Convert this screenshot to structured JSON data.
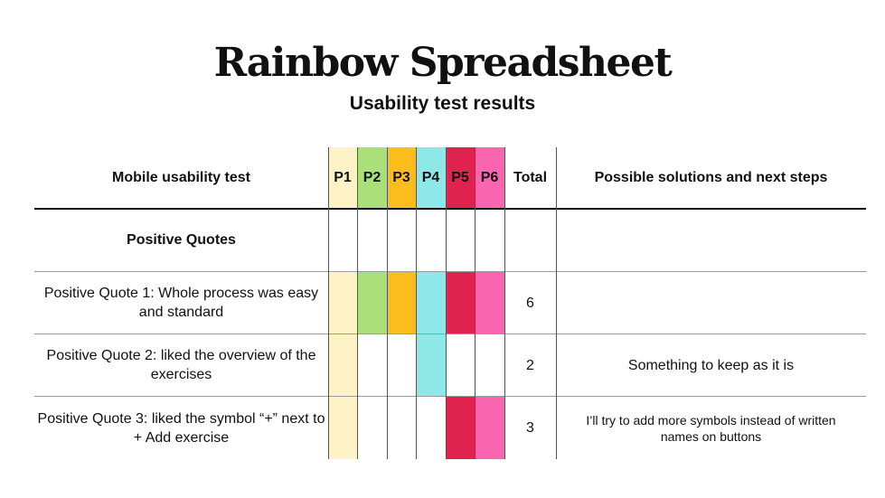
{
  "header": {
    "title": "Rainbow Spreadsheet",
    "subtitle": "Usability test results"
  },
  "table": {
    "columns": {
      "test": "Mobile usability test",
      "participants": [
        "P1",
        "P2",
        "P3",
        "P4",
        "P5",
        "P6"
      ],
      "total": "Total",
      "solutions": "Possible solutions and next steps"
    },
    "participant_colors": [
      "#fdf3c7",
      "#a9e07a",
      "#fbbd1c",
      "#8ee8e8",
      "#e0234e",
      "#fa65af"
    ],
    "rows": [
      {
        "label": "Positive Quotes",
        "section_heading": true,
        "marks": [
          false,
          false,
          false,
          false,
          false,
          false
        ],
        "total": "",
        "solution": ""
      },
      {
        "label": "Positive Quote 1: Whole process was easy and standard",
        "marks": [
          true,
          true,
          true,
          true,
          true,
          true
        ],
        "total": "6",
        "solution": ""
      },
      {
        "label": "Positive Quote 2: liked the overview of the exercises",
        "marks": [
          true,
          false,
          false,
          true,
          false,
          false
        ],
        "total": "2",
        "solution": "Something to keep as it is"
      },
      {
        "label": "Positive Quote 3: liked the symbol “+” next to + Add exercise",
        "marks": [
          true,
          false,
          false,
          false,
          true,
          true
        ],
        "total": "3",
        "solution": "I’ll try to add more symbols instead of written names on buttons"
      }
    ]
  }
}
